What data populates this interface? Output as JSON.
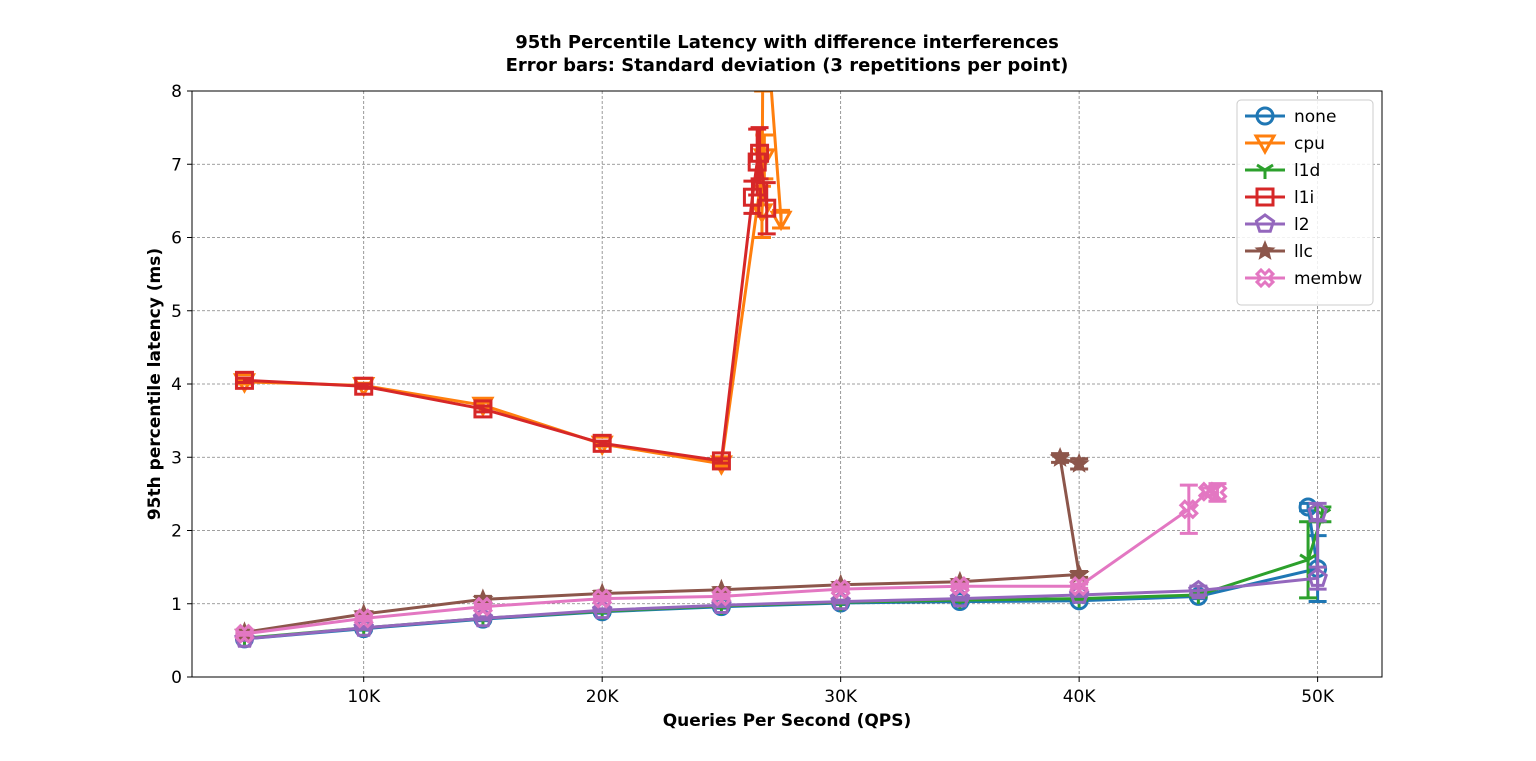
{
  "chart_data": {
    "type": "line",
    "title": "95th Percentile Latency with difference interferences",
    "subtitle": "Error bars: Standard deviation (3 repetitions per point)",
    "xlabel": "Queries Per Second (QPS)",
    "ylabel": "95th percentile latency (ms)",
    "xlim": [
      2800,
      52700
    ],
    "ylim": [
      0,
      8
    ],
    "xticks": [
      10000,
      20000,
      30000,
      40000,
      50000
    ],
    "xtick_labels": [
      "10K",
      "20K",
      "30K",
      "40K",
      "50K"
    ],
    "yticks": [
      0,
      1,
      2,
      3,
      4,
      5,
      6,
      7,
      8
    ],
    "ytick_labels": [
      "0",
      "1",
      "2",
      "3",
      "4",
      "5",
      "6",
      "7",
      "8"
    ],
    "grid": true,
    "legend_position": "top-right",
    "series": [
      {
        "name": "none",
        "color": "#1f77b4",
        "marker": "circle",
        "x": [
          5000,
          10000,
          15000,
          20000,
          25000,
          30000,
          35000,
          40000,
          45000,
          50000,
          49600
        ],
        "y": [
          0.52,
          0.66,
          0.79,
          0.89,
          0.96,
          1.01,
          1.03,
          1.04,
          1.1,
          1.48,
          2.32
        ],
        "err": [
          0.02,
          0.02,
          0.02,
          0.02,
          0.02,
          0.02,
          0.02,
          0.02,
          0.03,
          0.45,
          0.05
        ]
      },
      {
        "name": "cpu",
        "color": "#ff7f0e",
        "marker": "triangle-down",
        "x": [
          5000,
          10000,
          15000,
          20000,
          25000,
          26800,
          26700,
          26750,
          27500
        ],
        "y": [
          4.03,
          3.98,
          3.71,
          3.18,
          2.91,
          7.1,
          6.35,
          9.5,
          6.25
        ],
        "err": [
          0.03,
          0.03,
          0.04,
          0.03,
          0.03,
          0.3,
          0.35,
          1.5,
          0.12
        ]
      },
      {
        "name": "l1d",
        "color": "#2ca02c",
        "marker": "tri-down",
        "x": [
          5000,
          10000,
          15000,
          20000,
          25000,
          30000,
          35000,
          40000,
          45000,
          49600,
          50200
        ],
        "y": [
          0.53,
          0.67,
          0.8,
          0.9,
          0.97,
          1.02,
          1.05,
          1.07,
          1.12,
          1.6,
          2.22
        ],
        "err": [
          0.02,
          0.02,
          0.02,
          0.02,
          0.02,
          0.02,
          0.02,
          0.02,
          0.03,
          0.52,
          0.1
        ]
      },
      {
        "name": "l1i",
        "color": "#d62728",
        "marker": "square",
        "x": [
          5000,
          10000,
          15000,
          20000,
          25000,
          26300,
          26500,
          26600,
          26900
        ],
        "y": [
          4.05,
          3.97,
          3.66,
          3.19,
          2.95,
          6.55,
          7.03,
          7.15,
          6.4
        ],
        "err": [
          0.03,
          0.03,
          0.04,
          0.03,
          0.03,
          0.22,
          0.45,
          0.35,
          0.35
        ]
      },
      {
        "name": "l2",
        "color": "#9467bd",
        "marker": "pentagon",
        "x": [
          5000,
          10000,
          15000,
          20000,
          25000,
          30000,
          35000,
          40000,
          45000,
          50000,
          50000
        ],
        "y": [
          0.52,
          0.67,
          0.8,
          0.91,
          0.98,
          1.03,
          1.07,
          1.12,
          1.18,
          1.35,
          2.25
        ],
        "err": [
          0.02,
          0.02,
          0.02,
          0.02,
          0.02,
          0.02,
          0.02,
          0.02,
          0.06,
          0.15,
          0.12
        ]
      },
      {
        "name": "llc",
        "color": "#8c564b",
        "marker": "star",
        "x": [
          5000,
          10000,
          15000,
          20000,
          25000,
          30000,
          35000,
          40000,
          39200,
          40000
        ],
        "y": [
          0.61,
          0.86,
          1.06,
          1.14,
          1.19,
          1.26,
          1.3,
          1.4,
          2.99,
          2.91
        ],
        "err": [
          0.02,
          0.03,
          0.04,
          0.03,
          0.03,
          0.03,
          0.03,
          0.04,
          0.06,
          0.07
        ]
      },
      {
        "name": "membw",
        "color": "#e377c2",
        "marker": "x-thick",
        "x": [
          5000,
          10000,
          15000,
          20000,
          25000,
          30000,
          35000,
          40000,
          44600,
          45400,
          45800
        ],
        "y": [
          0.59,
          0.8,
          0.96,
          1.07,
          1.1,
          1.2,
          1.24,
          1.24,
          2.29,
          2.53,
          2.52
        ],
        "err": [
          0.02,
          0.03,
          0.03,
          0.03,
          0.03,
          0.03,
          0.03,
          0.03,
          0.33,
          0.05,
          0.12
        ]
      }
    ]
  }
}
